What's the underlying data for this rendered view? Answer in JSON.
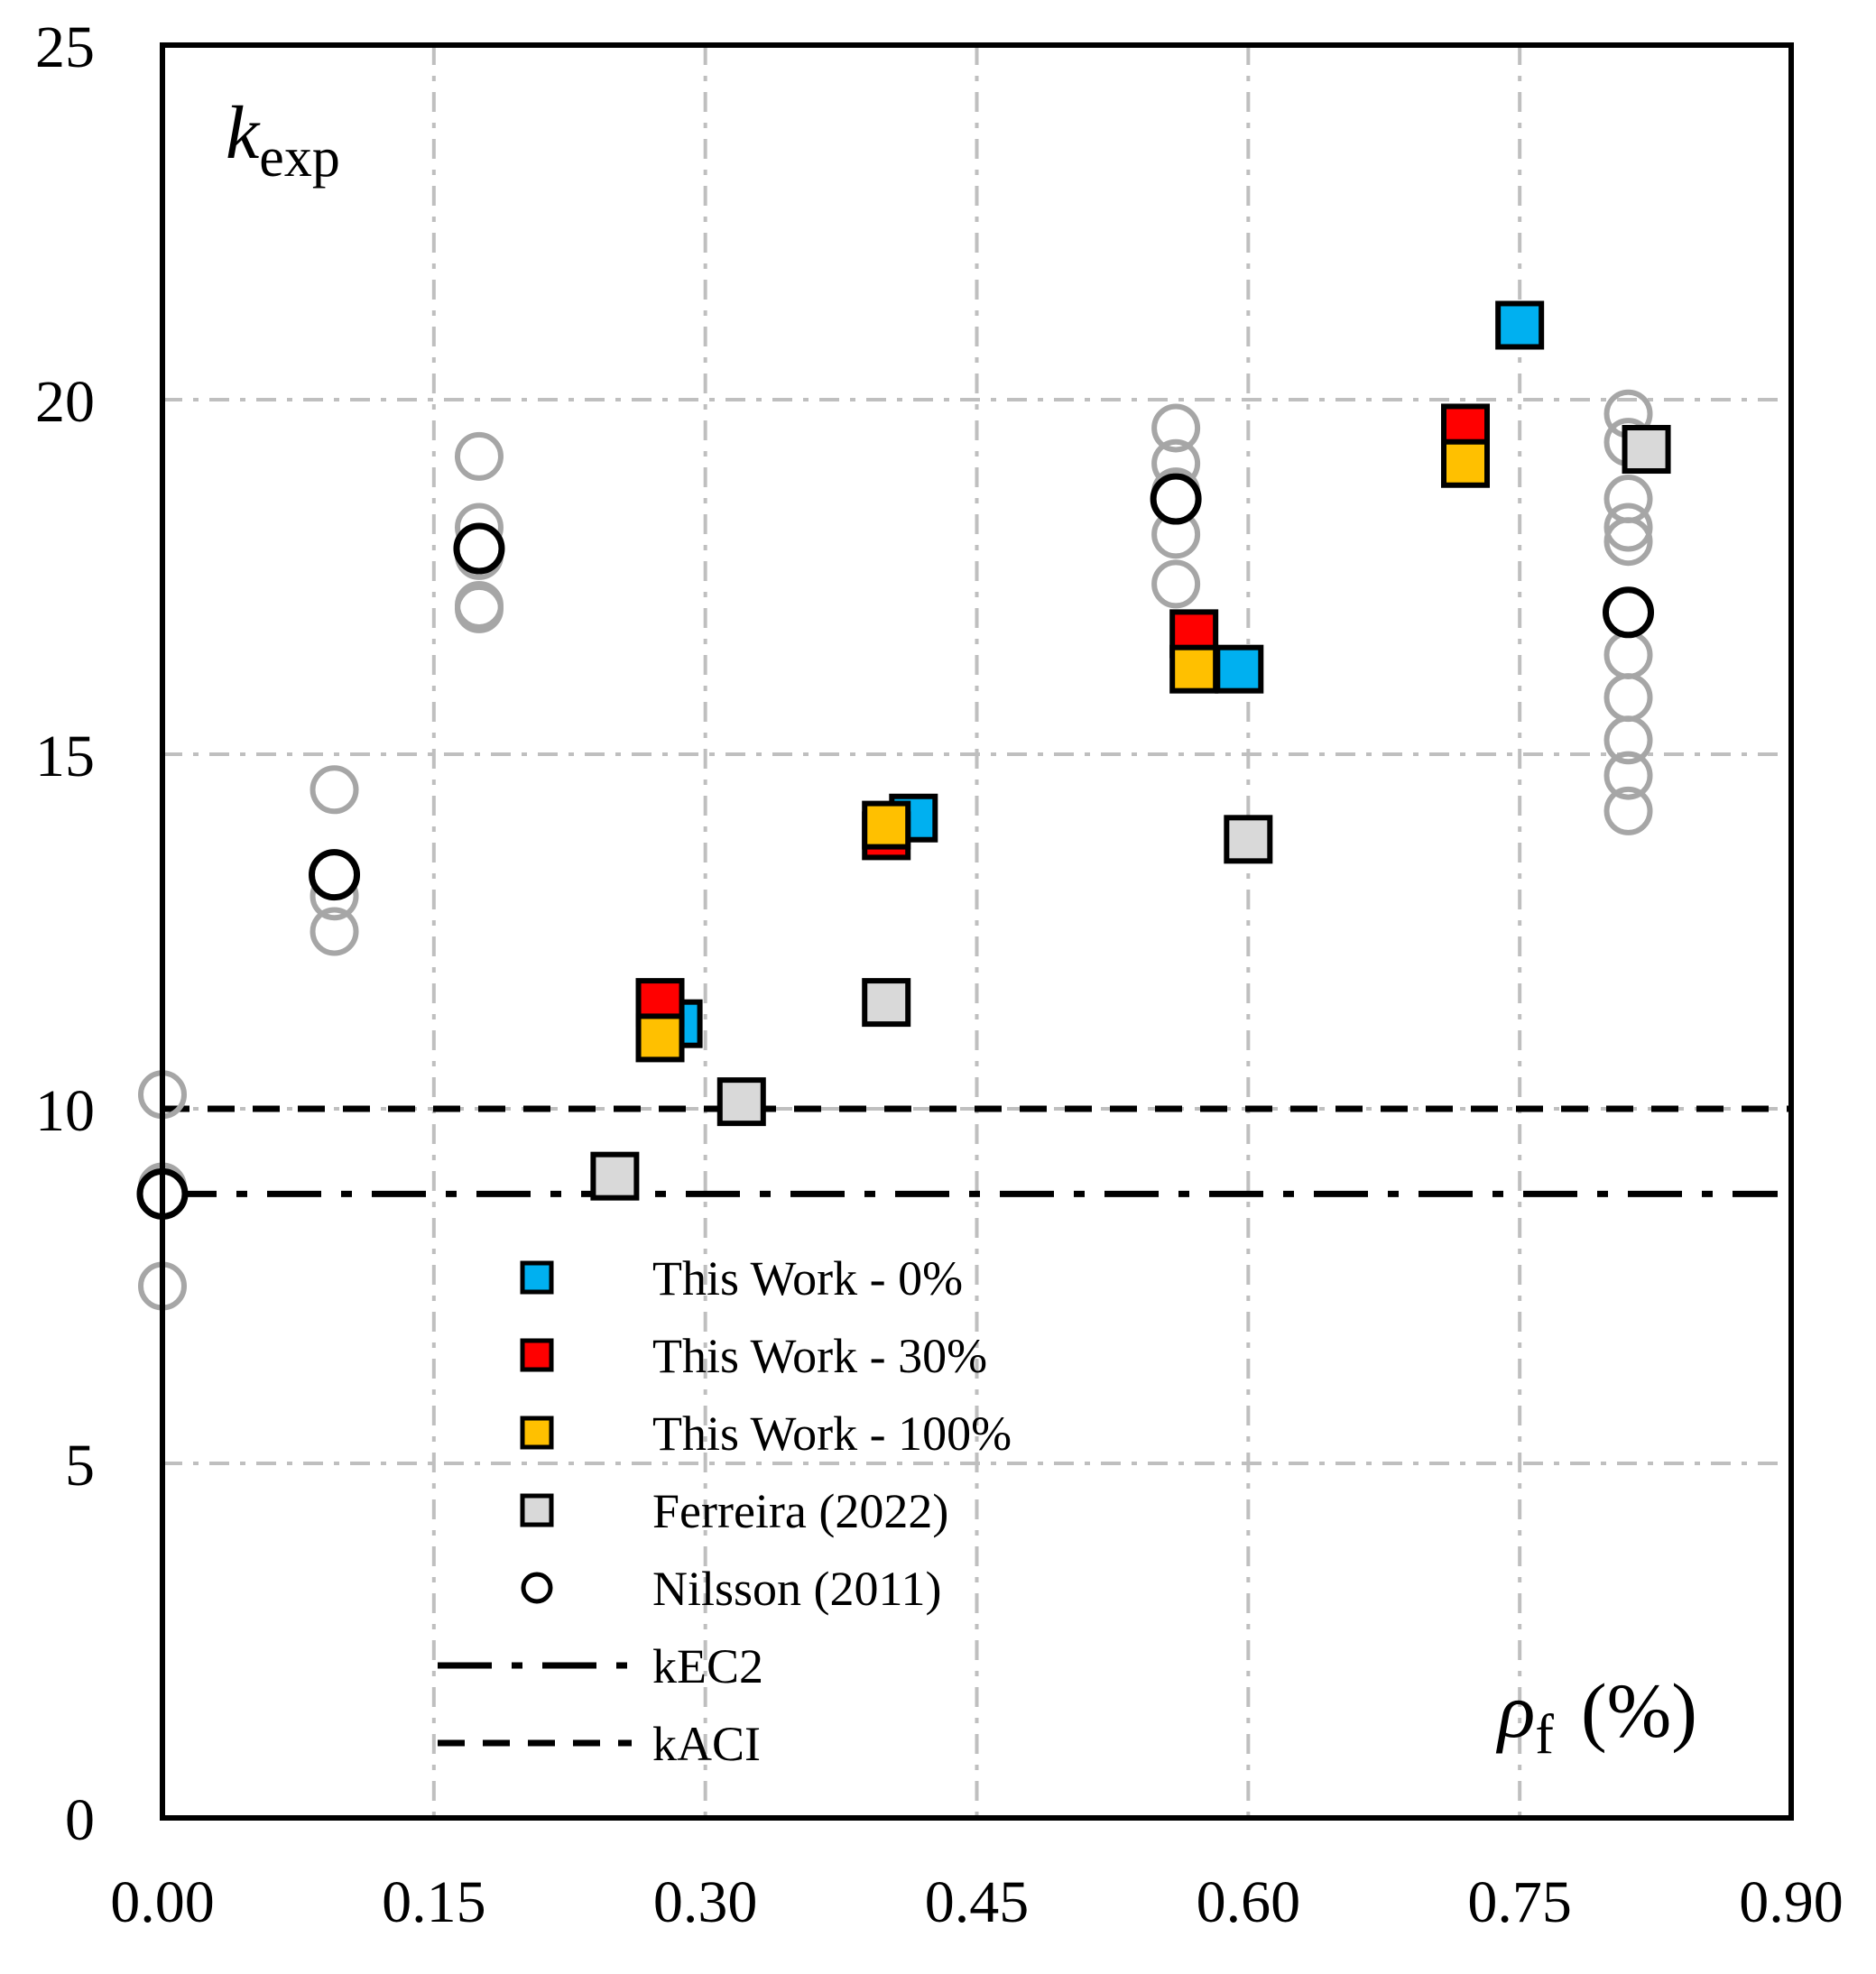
{
  "chart_data": {
    "type": "scatter",
    "title": "",
    "ylabel": {
      "main": "k",
      "sub": "exp"
    },
    "xlabel": {
      "main": "ρ",
      "sub": "f",
      "unit": "(%)"
    },
    "xlim": [
      0,
      0.9
    ],
    "ylim": [
      0,
      25
    ],
    "grid": true,
    "x_ticks": [
      0,
      0.15,
      0.3,
      0.45,
      0.6,
      0.75,
      0.9
    ],
    "x_tick_labels": [
      "0.00",
      "0.15",
      "0.30",
      "0.45",
      "0.60",
      "0.75",
      "0.90"
    ],
    "y_ticks": [
      0,
      5,
      10,
      15,
      20,
      25
    ],
    "y_tick_labels": [
      "0",
      "5",
      "10",
      "15",
      "20",
      "25"
    ],
    "legend_position": "lower-center",
    "series": [
      {
        "name": "This Work - 0%",
        "marker": "square",
        "color": "#00B0F0",
        "points": [
          [
            0.285,
            11.2
          ],
          [
            0.415,
            14.1
          ],
          [
            0.595,
            16.2
          ],
          [
            0.75,
            21.05
          ]
        ]
      },
      {
        "name": "This Work - 30%",
        "marker": "square",
        "color": "#FF0000",
        "points": [
          [
            0.275,
            11.5
          ],
          [
            0.4,
            13.85
          ],
          [
            0.57,
            16.7
          ],
          [
            0.72,
            19.6
          ]
        ]
      },
      {
        "name": "This Work - 100%",
        "marker": "square",
        "color": "#FFC000",
        "points": [
          [
            0.275,
            11.0
          ],
          [
            0.4,
            14.0
          ],
          [
            0.57,
            16.2
          ],
          [
            0.72,
            19.1
          ]
        ]
      },
      {
        "name": "Ferreira (2022)",
        "marker": "square",
        "color": "#D9D9D9",
        "points": [
          [
            0.25,
            9.05
          ],
          [
            0.32,
            10.1
          ],
          [
            0.4,
            11.5
          ],
          [
            0.6,
            13.8
          ],
          [
            0.82,
            19.3
          ]
        ]
      },
      {
        "name": "Nilsson (2011)",
        "marker": "circle",
        "color": "#FFFFFF",
        "points": [
          [
            0.0,
            8.8
          ],
          [
            0.095,
            13.3
          ],
          [
            0.175,
            17.9
          ],
          [
            0.56,
            18.6
          ],
          [
            0.81,
            17.0
          ]
        ]
      }
    ],
    "individual_points": {
      "name": "Nilsson (2011) individual",
      "marker": "circle",
      "color": "#A6A6A6",
      "points": [
        [
          0.0,
          10.2
        ],
        [
          0.0,
          8.9
        ],
        [
          0.0,
          7.5
        ],
        [
          0.095,
          14.5
        ],
        [
          0.095,
          13.0
        ],
        [
          0.095,
          12.5
        ],
        [
          0.175,
          19.2
        ],
        [
          0.175,
          18.2
        ],
        [
          0.175,
          17.8
        ],
        [
          0.175,
          17.1
        ],
        [
          0.175,
          17.05
        ],
        [
          0.56,
          19.6
        ],
        [
          0.56,
          19.1
        ],
        [
          0.56,
          18.7
        ],
        [
          0.56,
          18.1
        ],
        [
          0.56,
          17.4
        ],
        [
          0.81,
          19.8
        ],
        [
          0.81,
          19.4
        ],
        [
          0.81,
          18.6
        ],
        [
          0.81,
          18.2
        ],
        [
          0.81,
          18.0
        ],
        [
          0.81,
          17.0
        ],
        [
          0.81,
          16.4
        ],
        [
          0.81,
          15.8
        ],
        [
          0.81,
          15.2
        ],
        [
          0.81,
          14.7
        ],
        [
          0.81,
          14.2
        ]
      ]
    },
    "reference_lines": [
      {
        "name": "kEC2",
        "value": 8.8,
        "style": "dash-dot"
      },
      {
        "name": "kACI",
        "value": 10.0,
        "style": "dashed"
      }
    ],
    "legend_entries": [
      {
        "label": "This Work - 0%",
        "marker": "square",
        "color": "#00B0F0"
      },
      {
        "label": "This Work - 30%",
        "marker": "square",
        "color": "#FF0000"
      },
      {
        "label": "This Work - 100%",
        "marker": "square",
        "color": "#FFC000"
      },
      {
        "label": "Ferreira (2022)",
        "marker": "square",
        "color": "#D9D9D9"
      },
      {
        "label": "Nilsson (2011)",
        "marker": "circle",
        "color": "#FFFFFF"
      },
      {
        "label": "kEC2",
        "marker": "dash-dot"
      },
      {
        "label": "kACI",
        "marker": "dashed"
      }
    ]
  }
}
